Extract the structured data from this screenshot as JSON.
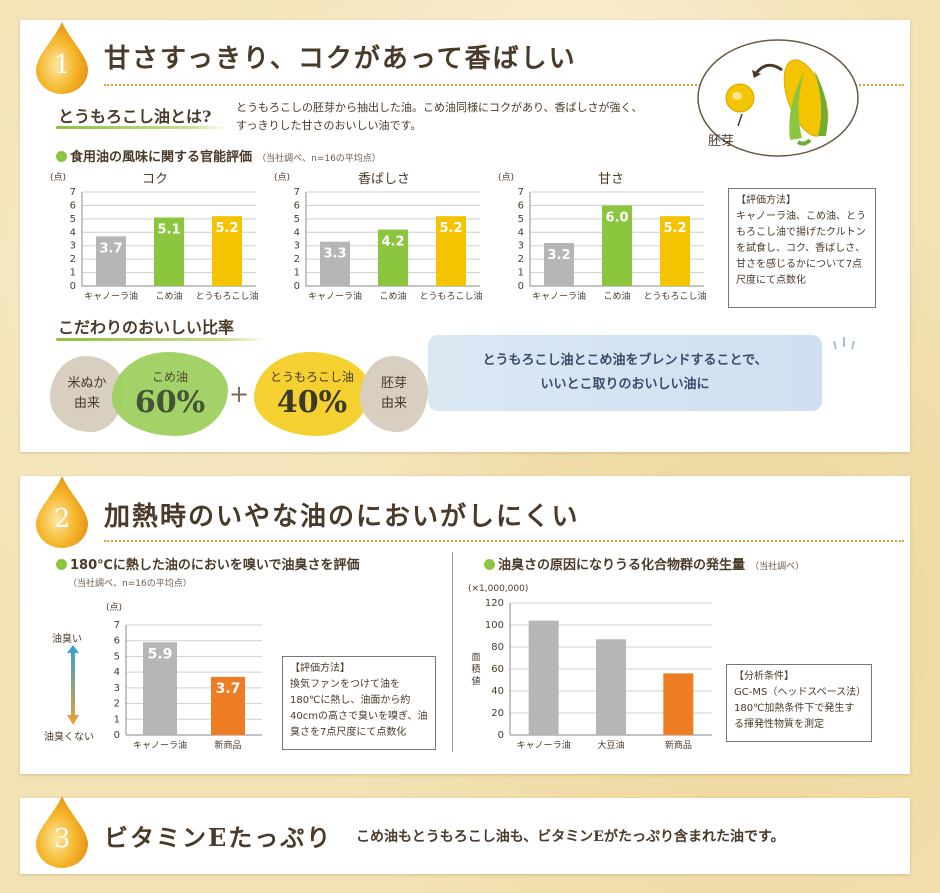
{
  "section1": {
    "number": "1",
    "title": "甘さすっきり、コクがあって香ばしい",
    "what_is_heading": "とうもろこし油とは?",
    "what_is_text": [
      "とうもろこしの胚芽から抽出した油。こめ油同様にコクがあり、香ばしさが強く、",
      "すっきりした甘さのおいしい油です。"
    ],
    "germ_label": "胚芽",
    "eval_heading": "食用油の風味に関する官能評価",
    "eval_note": "（当社調べ、n=16の平均点）",
    "method_box": [
      "【評価方法】",
      "キャノーラ油、こめ油、とうもろこし油で揚げたクルトンを試食し、コク、香ばしさ、甘さを感じるかについて7点尺度にて点数化"
    ],
    "ratio_heading": "こだわりのおいしい比率",
    "ratio": {
      "left_side": [
        "米ぬか",
        "由来"
      ],
      "rice_name": "こめ油",
      "rice_pct": "60%",
      "plus": "+",
      "corn_name": "とうもろこし油",
      "corn_pct": "40%",
      "right_side": [
        "胚芽",
        "由来"
      ]
    },
    "blend_text": [
      "とうもろこし油とこめ油をブレンドすることで、",
      "いいとこ取りのおいしい油に"
    ]
  },
  "section2": {
    "number": "2",
    "title": "加熱時のいやな油のにおいがしにくい",
    "left_heading": "180℃に熱した油のにおいを嗅いで油臭さを評価",
    "left_note": "（当社調べ、n=16の平均点）",
    "axis_top": "油臭い",
    "axis_bottom": "油臭くない",
    "left_box": [
      "【評価方法】",
      "換気ファンをつけて油を180℃に熱し、油面から約40cmの高さで臭いを嗅ぎ、油臭さを7点尺度にて点数化"
    ],
    "right_heading": "油臭さの原因になりうる化合物群の発生量",
    "right_note": "（当社調べ）",
    "right_box": [
      "【分析条件】",
      "GC-MS（ヘッドスペース法）",
      "180℃加熱条件下で発生する揮発性物質を測定"
    ]
  },
  "section3": {
    "number": "3",
    "title": "ビタミンEたっぷり",
    "text": "こめ油もとうもろこし油も、ビタミンEがたっぷり含まれた油です。"
  },
  "colors": {
    "gray": "#b5b6b8",
    "green": "#8cc63f",
    "yellow": "#f5c400",
    "orange": "#ee7c22",
    "accent": "#e0a030"
  },
  "chart_data": [
    {
      "type": "bar",
      "title": "コク",
      "ylabel": "（点）",
      "ylim": [
        0,
        7
      ],
      "yticks": [
        0,
        1,
        2,
        3,
        4,
        5,
        6,
        7
      ],
      "categories": [
        "キャノーラ油",
        "こめ油",
        "とうもろこし油"
      ],
      "values": [
        3.7,
        5.1,
        5.2
      ],
      "labels": [
        "3.7",
        "5.1",
        "5.2"
      ],
      "colors": [
        "#b5b6b8",
        "#8cc63f",
        "#f5c400"
      ],
      "grid": true
    },
    {
      "type": "bar",
      "title": "香ばしさ",
      "ylabel": "（点）",
      "ylim": [
        0,
        7
      ],
      "yticks": [
        0,
        1,
        2,
        3,
        4,
        5,
        6,
        7
      ],
      "categories": [
        "キャノーラ油",
        "こめ油",
        "とうもろこし油"
      ],
      "values": [
        3.3,
        4.2,
        5.2
      ],
      "labels": [
        "3.3",
        "4.2",
        "5.2"
      ],
      "colors": [
        "#b5b6b8",
        "#8cc63f",
        "#f5c400"
      ],
      "grid": true
    },
    {
      "type": "bar",
      "title": "甘さ",
      "ylabel": "（点）",
      "ylim": [
        0,
        7
      ],
      "yticks": [
        0,
        1,
        2,
        3,
        4,
        5,
        6,
        7
      ],
      "categories": [
        "キャノーラ油",
        "こめ油",
        "とうもろこし油"
      ],
      "values": [
        3.2,
        6.0,
        5.2
      ],
      "labels": [
        "3.2",
        "6.0",
        "5.2"
      ],
      "colors": [
        "#b5b6b8",
        "#8cc63f",
        "#f5c400"
      ],
      "grid": true
    },
    {
      "type": "bar",
      "title": "",
      "ylabel": "（点）",
      "ylim": [
        0,
        7
      ],
      "yticks": [
        0,
        1,
        2,
        3,
        4,
        5,
        6,
        7
      ],
      "categories": [
        "キャノーラ油",
        "新商品"
      ],
      "values": [
        5.9,
        3.7
      ],
      "labels": [
        "5.9",
        "3.7"
      ],
      "colors": [
        "#b5b6b8",
        "#ee7c22"
      ],
      "grid": true
    },
    {
      "type": "bar",
      "title": "",
      "ylabel": "面積値",
      "yunit": "（×1,000,000）",
      "ylim": [
        0,
        120
      ],
      "yticks": [
        0,
        20,
        40,
        60,
        80,
        100,
        120
      ],
      "categories": [
        "キャノーラ油",
        "大豆油",
        "新商品"
      ],
      "values": [
        104,
        87,
        56
      ],
      "labels": [],
      "colors": [
        "#b5b6b8",
        "#b5b6b8",
        "#ee7c22"
      ],
      "grid": true
    }
  ]
}
